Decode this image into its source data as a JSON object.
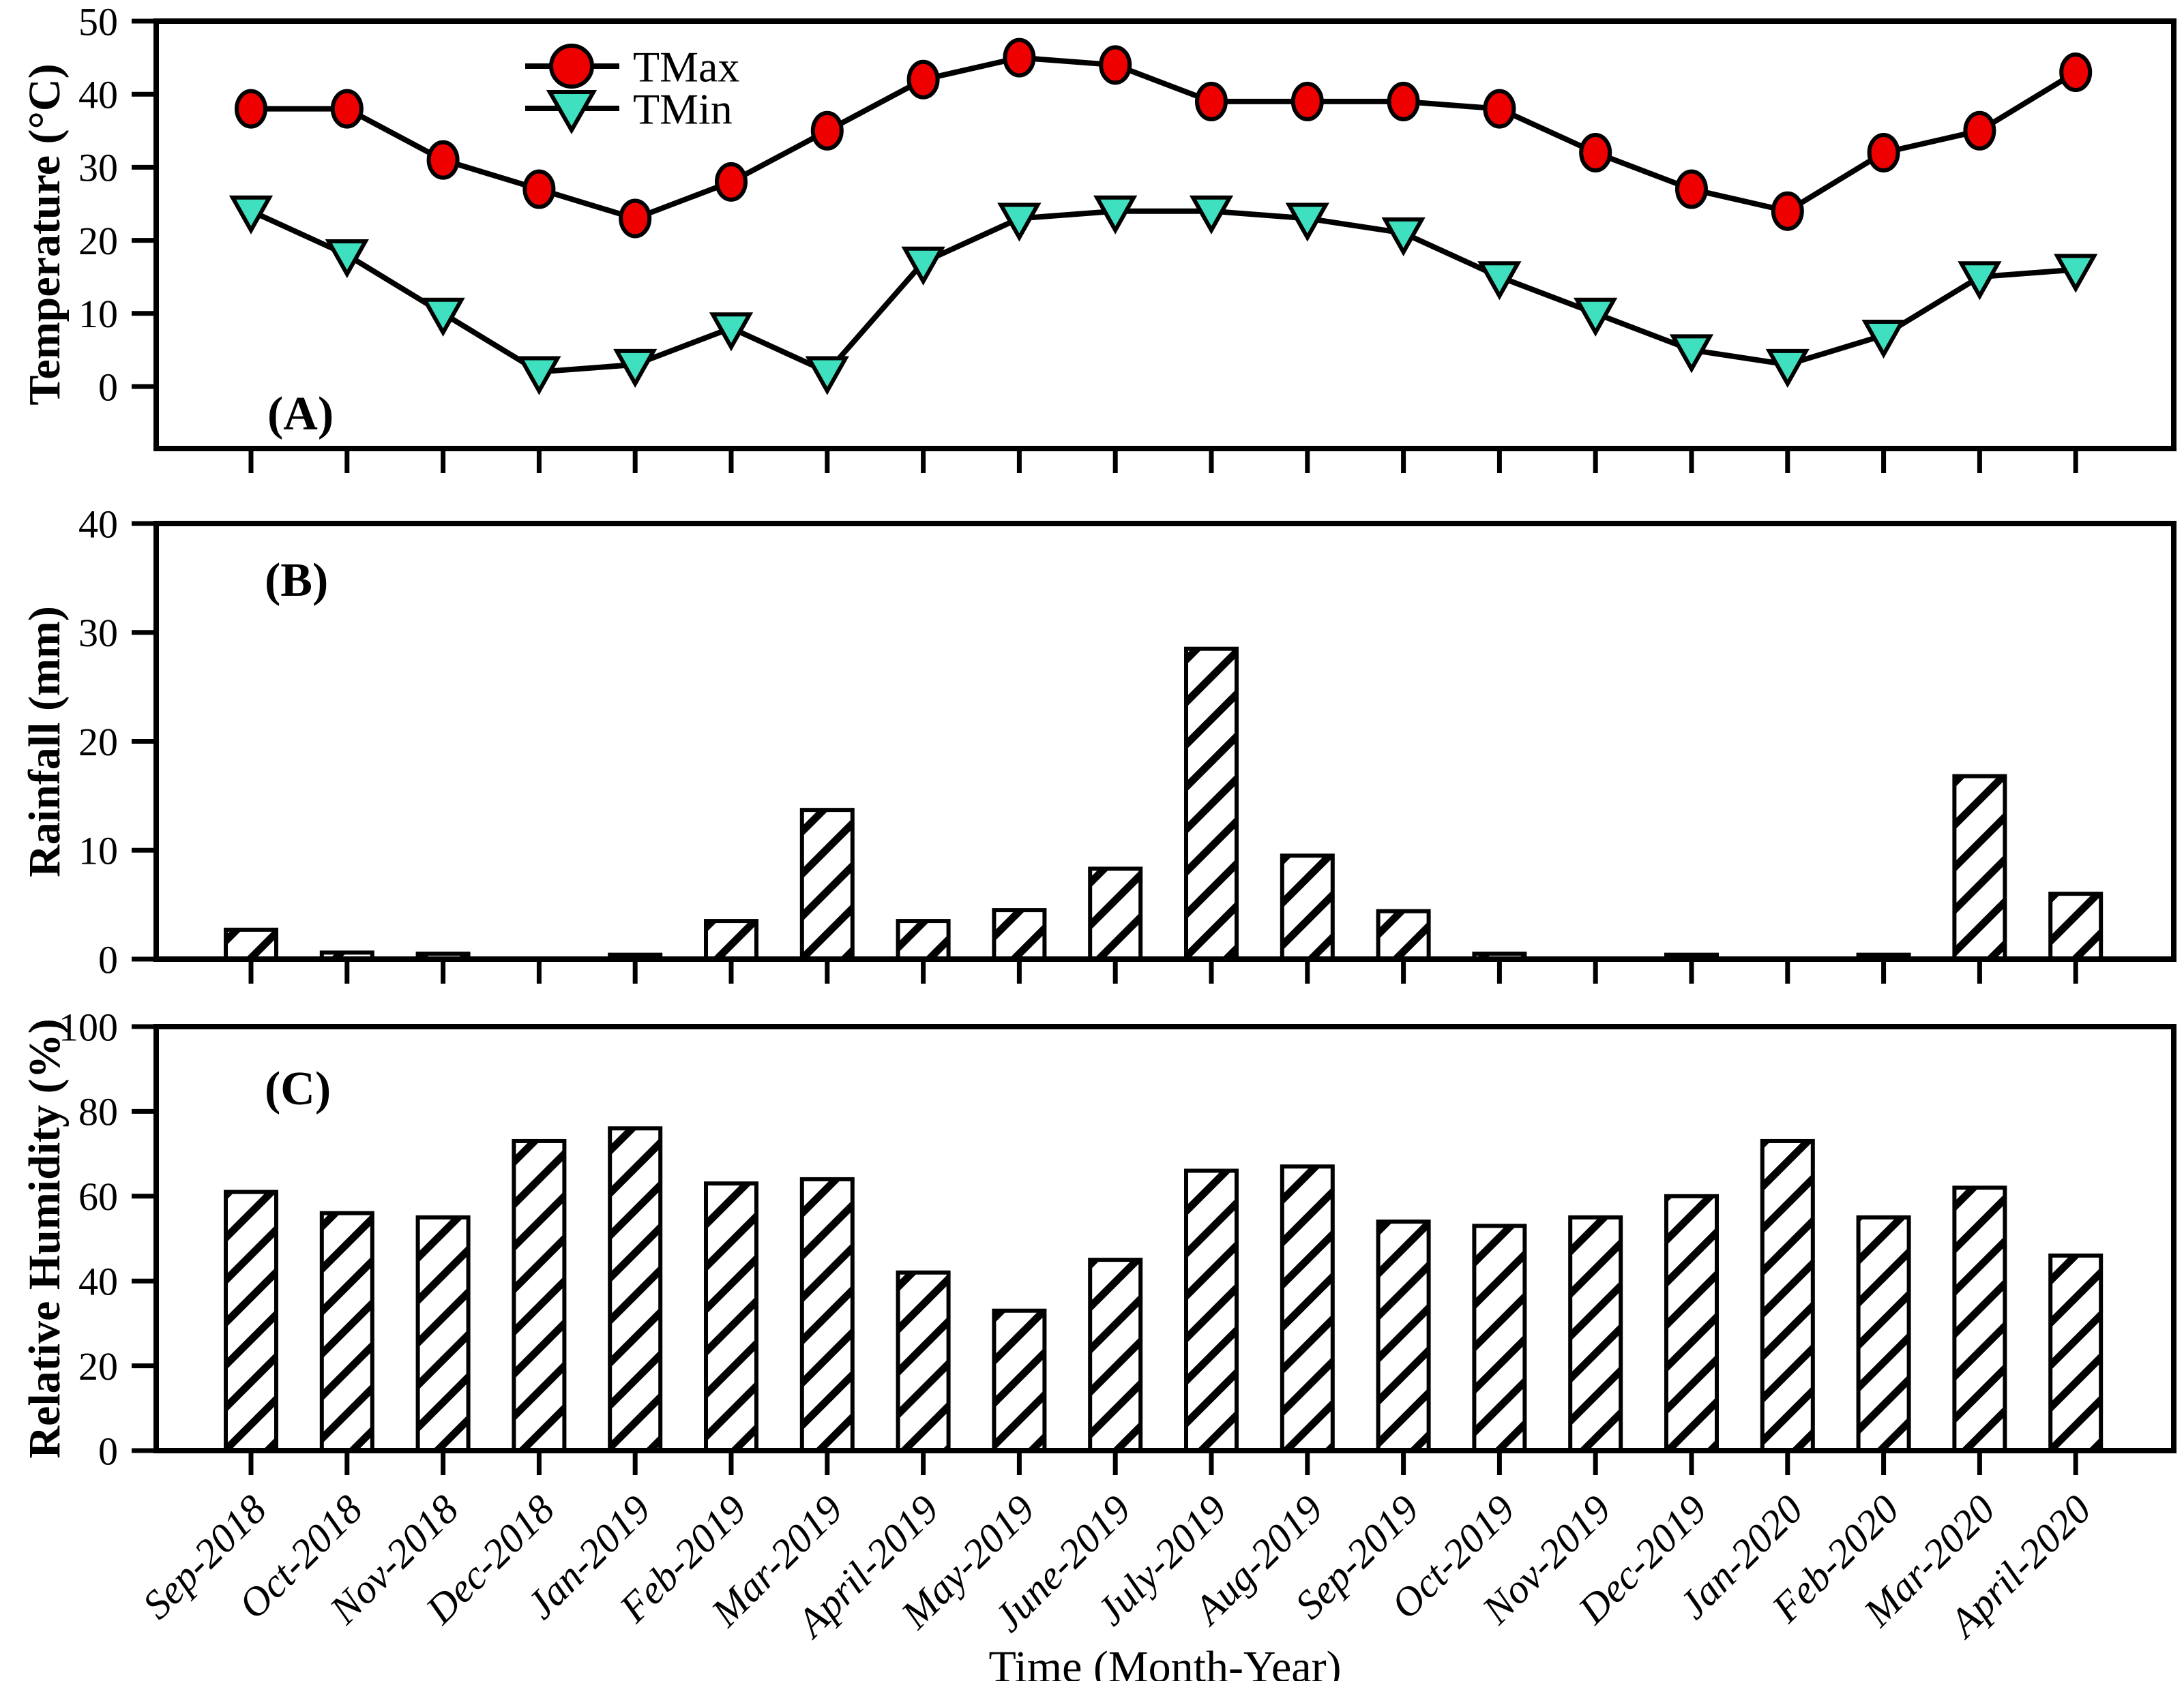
{
  "figure": {
    "x_axis_title": "Time (Month-Year)",
    "colors": {
      "tmax_marker": "#EE0000",
      "tmin_marker": "#3FE0C0",
      "line_and_axis": "#000000",
      "bar_fill": "#FFFFFF",
      "bar_hatch": "#000000"
    }
  },
  "chart_data": [
    {
      "type": "line",
      "panel_label": "(A)",
      "ylabel": "Temperature (°C)",
      "ylim": [
        -8.5,
        50
      ],
      "yticks": [
        0,
        10,
        20,
        30,
        40,
        50
      ],
      "grid": false,
      "legend_position": "inside-top-left",
      "categories": [
        "Sep-2018",
        "Oct-2018",
        "Nov-2018",
        "Dec-2018",
        "Jan-2019",
        "Feb-2019",
        "Mar-2019",
        "April-2019",
        "May-2019",
        "June-2019",
        "July-2019",
        "Aug-2019",
        "Sep-2019",
        "Oct-2019",
        "Nov-2019",
        "Dec-2019",
        "Jan-2020",
        "Feb-2020",
        "Mar-2020",
        "April-2020"
      ],
      "series": [
        {
          "name": "TMax",
          "marker": "circle",
          "marker_color": "#EE0000",
          "values": [
            38,
            38,
            31,
            27,
            23,
            28,
            35,
            42,
            45,
            44,
            39,
            39,
            39,
            38,
            32,
            27,
            24,
            32,
            35,
            43
          ]
        },
        {
          "name": "TMin",
          "marker": "triangle-down",
          "marker_color": "#3FE0C0",
          "values": [
            24,
            18,
            10,
            2,
            3,
            8,
            2,
            17,
            23,
            24,
            24,
            23,
            21,
            15,
            10,
            5,
            3,
            7,
            15,
            16
          ]
        }
      ]
    },
    {
      "type": "bar",
      "panel_label": "(B)",
      "ylabel": "Rainfall (mm)",
      "ylim": [
        0,
        40
      ],
      "yticks": [
        0,
        10,
        20,
        30,
        40
      ],
      "grid": false,
      "bar_style": "diagonal-hatch",
      "categories": [
        "Sep-2018",
        "Oct-2018",
        "Nov-2018",
        "Dec-2018",
        "Jan-2019",
        "Feb-2019",
        "Mar-2019",
        "April-2019",
        "May-2019",
        "June-2019",
        "July-2019",
        "Aug-2019",
        "Sep-2019",
        "Oct-2019",
        "Nov-2019",
        "Dec-2019",
        "Jan-2020",
        "Feb-2020",
        "Mar-2020",
        "April-2020"
      ],
      "values": [
        2.7,
        0.6,
        0.5,
        0,
        0.4,
        3.5,
        13.7,
        3.5,
        4.5,
        8.3,
        28.5,
        9.5,
        4.4,
        0.5,
        0,
        0.4,
        0,
        0.4,
        16.8,
        6
      ]
    },
    {
      "type": "bar",
      "panel_label": "(C)",
      "ylabel": "Relative Humidity (%)",
      "ylim": [
        0,
        100
      ],
      "yticks": [
        0,
        20,
        40,
        60,
        80,
        100
      ],
      "grid": false,
      "bar_style": "diagonal-hatch",
      "categories": [
        "Sep-2018",
        "Oct-2018",
        "Nov-2018",
        "Dec-2018",
        "Jan-2019",
        "Feb-2019",
        "Mar-2019",
        "April-2019",
        "May-2019",
        "June-2019",
        "July-2019",
        "Aug-2019",
        "Sep-2019",
        "Oct-2019",
        "Nov-2019",
        "Dec-2019",
        "Jan-2020",
        "Feb-2020",
        "Mar-2020",
        "April-2020"
      ],
      "values": [
        61,
        56,
        55,
        73,
        76,
        63,
        64,
        42,
        33,
        45,
        66,
        67,
        54,
        53,
        55,
        60,
        73,
        55,
        62,
        46
      ]
    }
  ]
}
